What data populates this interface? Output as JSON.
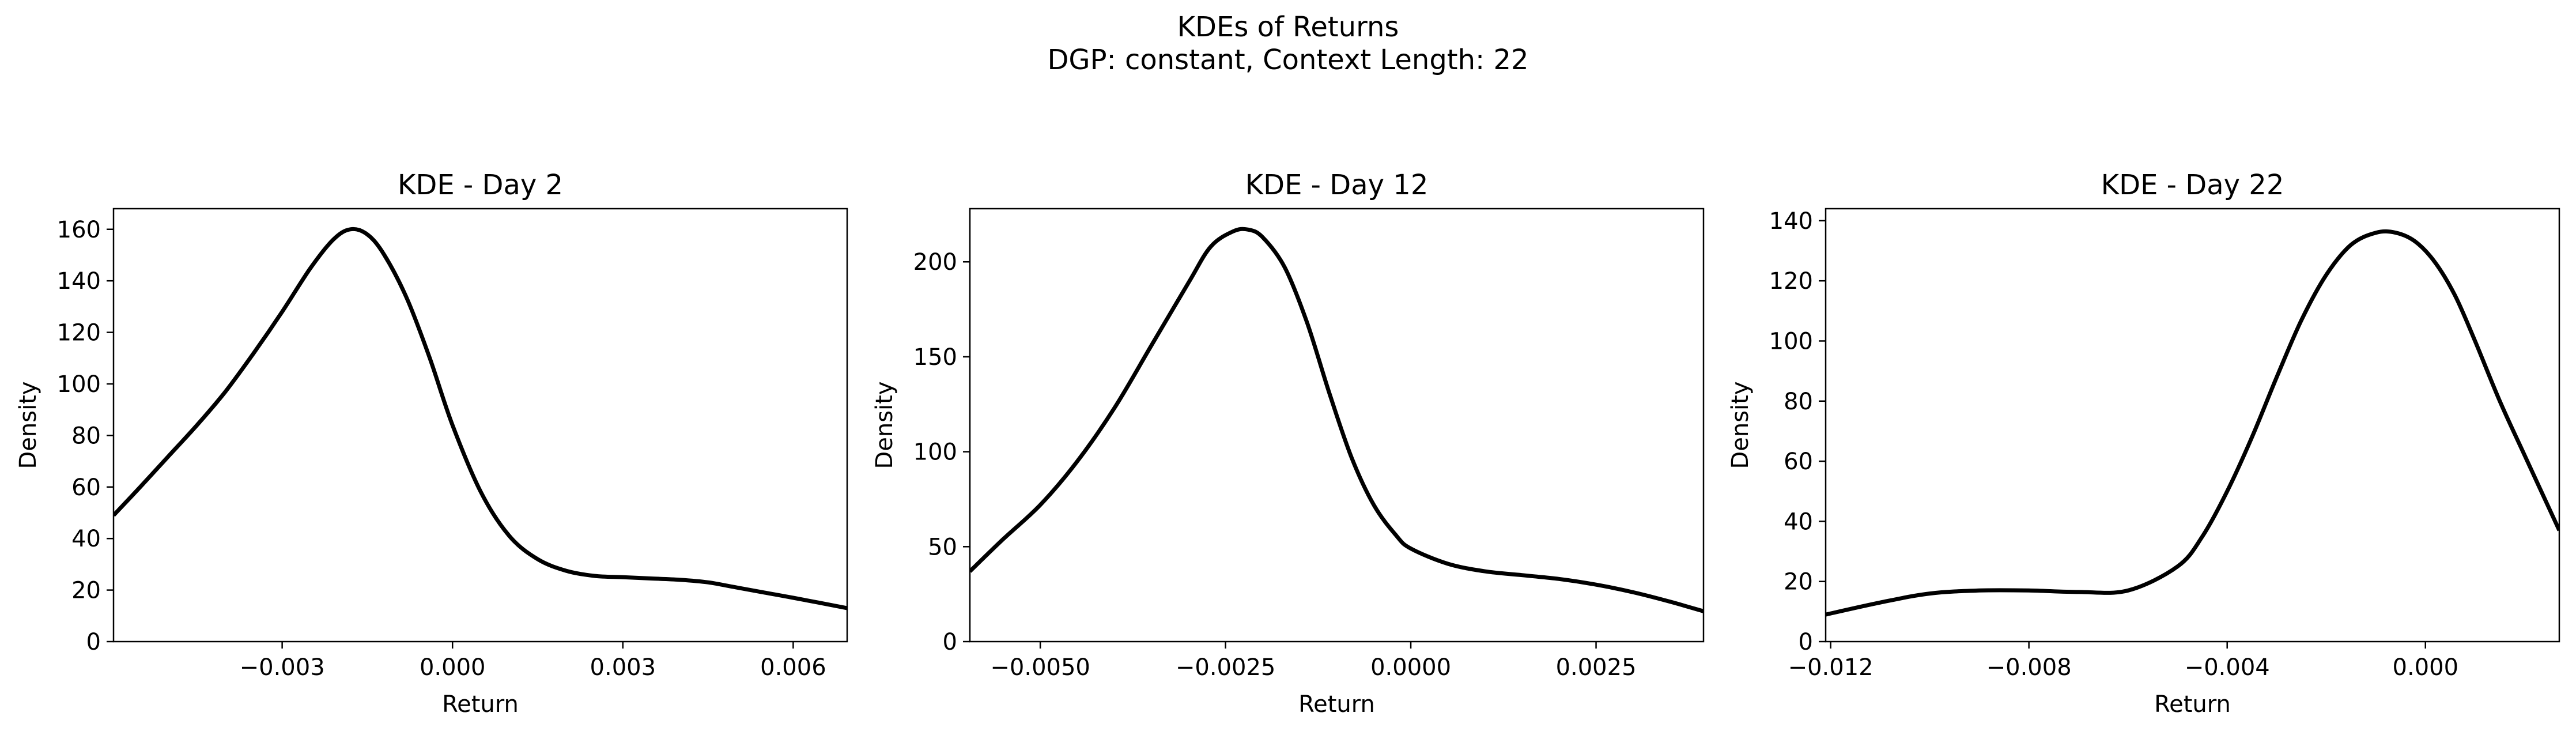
{
  "figure": {
    "title_line1": "KDEs of Returns",
    "title_line2": "DGP: constant, Context Length: 22"
  },
  "chart_data": [
    {
      "type": "line",
      "title": "KDE - Day 2",
      "xlabel": "Return",
      "ylabel": "Density",
      "xlim": [
        -0.00597,
        0.00695
      ],
      "ylim": [
        0,
        168
      ],
      "xticks": [
        -0.003,
        0.0,
        0.003,
        0.006
      ],
      "xtick_labels": [
        "−0.003",
        "0.000",
        "0.003",
        "0.006"
      ],
      "yticks": [
        0,
        20,
        40,
        60,
        80,
        100,
        120,
        140,
        160
      ],
      "ytick_labels": [
        "0",
        "20",
        "40",
        "60",
        "80",
        "100",
        "120",
        "140",
        "160"
      ],
      "grid": false,
      "series": [
        {
          "color": "#000000",
          "x": [
            -0.00597,
            -0.0055,
            -0.005,
            -0.0045,
            -0.004,
            -0.0035,
            -0.003,
            -0.0025,
            -0.0021,
            -0.0018,
            -0.0015,
            -0.0012,
            -0.0008,
            -0.0004,
            0.0,
            0.0005,
            0.001,
            0.0015,
            0.002,
            0.0025,
            0.003,
            0.0035,
            0.004,
            0.0045,
            0.005,
            0.0055,
            0.006,
            0.00695
          ],
          "y": [
            49,
            60,
            72,
            84,
            97,
            112,
            128,
            145,
            156,
            160,
            158,
            150,
            133,
            110,
            84,
            58,
            41,
            32,
            27.5,
            25.5,
            25,
            24.5,
            24,
            23,
            21,
            19,
            17,
            13
          ]
        }
      ]
    },
    {
      "type": "line",
      "title": "KDE - Day 12",
      "xlabel": "Return",
      "ylabel": "Density",
      "xlim": [
        -0.00595,
        0.00395
      ],
      "ylim": [
        0,
        228
      ],
      "xticks": [
        -0.005,
        -0.0025,
        0.0,
        0.0025
      ],
      "xtick_labels": [
        "−0.0050",
        "−0.0025",
        "0.0000",
        "0.0025"
      ],
      "yticks": [
        0,
        50,
        100,
        150,
        200
      ],
      "ytick_labels": [
        "0",
        "50",
        "100",
        "150",
        "200"
      ],
      "grid": false,
      "series": [
        {
          "color": "#000000",
          "x": [
            -0.00595,
            -0.0055,
            -0.005,
            -0.0045,
            -0.004,
            -0.0035,
            -0.003,
            -0.0027,
            -0.0024,
            -0.0022,
            -0.002,
            -0.0017,
            -0.0014,
            -0.0011,
            -0.0008,
            -0.0005,
            -0.0002,
            0.0,
            0.0005,
            0.001,
            0.0015,
            0.002,
            0.0025,
            0.003,
            0.0035,
            0.00395
          ],
          "y": [
            37,
            54,
            72,
            95,
            123,
            156,
            189,
            208,
            216,
            217,
            213,
            197,
            168,
            131,
            97,
            72,
            56,
            49,
            41,
            37,
            35,
            33,
            30,
            26,
            21,
            16
          ]
        }
      ]
    },
    {
      "type": "line",
      "title": "KDE - Day 22",
      "xlabel": "Return",
      "ylabel": "Density",
      "xlim": [
        -0.0121,
        0.0027
      ],
      "ylim": [
        0,
        144
      ],
      "xticks": [
        -0.012,
        -0.008,
        -0.004,
        0.0
      ],
      "xtick_labels": [
        "−0.012",
        "−0.008",
        "−0.004",
        "0.000"
      ],
      "yticks": [
        0,
        20,
        40,
        60,
        80,
        100,
        120,
        140
      ],
      "ytick_labels": [
        "0",
        "20",
        "40",
        "60",
        "80",
        "100",
        "120",
        "140"
      ],
      "grid": false,
      "series": [
        {
          "color": "#000000",
          "x": [
            -0.0121,
            -0.011,
            -0.01,
            -0.009,
            -0.008,
            -0.007,
            -0.006,
            -0.005,
            -0.0045,
            -0.004,
            -0.0035,
            -0.003,
            -0.0025,
            -0.002,
            -0.0015,
            -0.001,
            -0.0006,
            -0.0002,
            0.0002,
            0.0006,
            0.001,
            0.0015,
            0.002,
            0.0027
          ],
          "y": [
            9,
            13,
            16,
            17,
            17,
            16.5,
            17,
            25,
            35,
            50,
            68,
            88,
            107,
            122,
            132,
            136,
            136,
            133,
            126,
            115,
            100,
            80,
            62,
            37
          ]
        }
      ]
    }
  ]
}
